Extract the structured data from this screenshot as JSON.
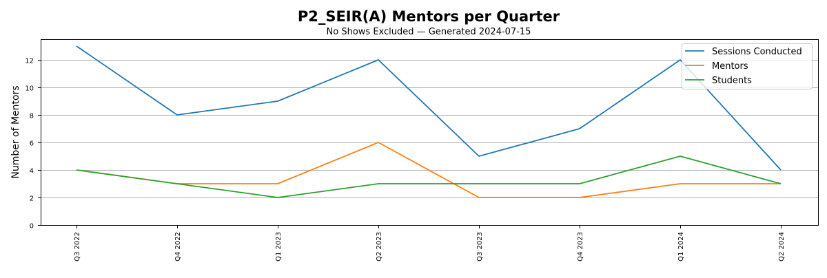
{
  "chart_data": {
    "type": "line",
    "title": "P2_SEIR(A) Mentors per Quarter",
    "subtitle": "No Shows Excluded — Generated 2024-07-15",
    "xlabel": "",
    "ylabel": "Number of Mentors",
    "categories": [
      "Q3 2022",
      "Q4 2022",
      "Q1 2023",
      "Q2 2023",
      "Q3 2023",
      "Q4 2023",
      "Q1 2024",
      "Q2 2024"
    ],
    "series": [
      {
        "name": "Sessions Conducted",
        "color": "#1f77b4",
        "values": [
          13,
          8,
          9,
          12,
          5,
          7,
          12,
          4
        ]
      },
      {
        "name": "Mentors",
        "color": "#ff7f0e",
        "values": [
          4,
          3,
          3,
          6,
          2,
          2,
          3,
          3
        ]
      },
      {
        "name": "Students",
        "color": "#2ca02c",
        "values": [
          4,
          3,
          2,
          3,
          3,
          3,
          5,
          3
        ]
      }
    ],
    "yticks": [
      0,
      2,
      4,
      6,
      8,
      10,
      12
    ],
    "ylim": [
      0,
      13.5
    ],
    "grid": {
      "y": true,
      "x": false,
      "color": "#b0b0b0"
    },
    "legend_position": "upper right"
  }
}
